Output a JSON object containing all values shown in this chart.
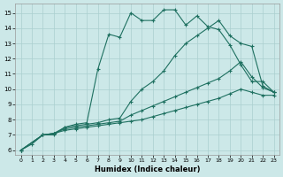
{
  "xlabel": "Humidex (Indice chaleur)",
  "bg_color": "#cce8e8",
  "grid_color": "#aacfcf",
  "line_color": "#1e7060",
  "xlim": [
    -0.5,
    23.5
  ],
  "ylim": [
    5.7,
    15.6
  ],
  "yticks": [
    6,
    7,
    8,
    9,
    10,
    11,
    12,
    13,
    14,
    15
  ],
  "xticks": [
    0,
    1,
    2,
    3,
    4,
    5,
    6,
    7,
    8,
    9,
    10,
    11,
    12,
    13,
    14,
    15,
    16,
    17,
    18,
    19,
    20,
    21,
    22,
    23
  ],
  "lines": [
    {
      "x": [
        0,
        1,
        2,
        3,
        4,
        5,
        6,
        7,
        8,
        9,
        10,
        11,
        12,
        13,
        14,
        15,
        16,
        17,
        18,
        19,
        20,
        21,
        22,
        23
      ],
      "y": [
        6,
        6.4,
        7.0,
        7.0,
        7.5,
        7.7,
        7.8,
        11.3,
        13.6,
        13.4,
        15.0,
        14.5,
        14.5,
        15.2,
        15.2,
        14.2,
        14.8,
        14.1,
        13.9,
        12.9,
        11.6,
        10.5,
        10.5,
        9.8
      ],
      "marker": "+"
    },
    {
      "x": [
        0,
        2,
        3,
        4,
        5,
        6,
        7,
        8,
        9,
        10,
        11,
        12,
        13,
        14,
        15,
        16,
        17,
        18,
        19,
        20,
        21,
        22,
        23
      ],
      "y": [
        6.0,
        7.0,
        7.1,
        7.5,
        7.6,
        7.7,
        7.8,
        8.0,
        8.1,
        9.2,
        10.0,
        10.5,
        11.2,
        12.2,
        13.0,
        13.5,
        14.0,
        14.5,
        13.5,
        13.0,
        12.8,
        10.2,
        9.8
      ],
      "marker": "+"
    },
    {
      "x": [
        0,
        2,
        3,
        4,
        5,
        6,
        7,
        8,
        9,
        10,
        11,
        12,
        13,
        14,
        15,
        16,
        17,
        18,
        19,
        20,
        21,
        22,
        23
      ],
      "y": [
        6.0,
        7.0,
        7.1,
        7.4,
        7.5,
        7.6,
        7.7,
        7.8,
        7.9,
        8.3,
        8.6,
        8.9,
        9.2,
        9.5,
        9.8,
        10.1,
        10.4,
        10.7,
        11.2,
        11.8,
        10.8,
        10.1,
        9.8
      ],
      "marker": "+"
    },
    {
      "x": [
        0,
        2,
        3,
        4,
        5,
        6,
        7,
        8,
        9,
        10,
        11,
        12,
        13,
        14,
        15,
        16,
        17,
        18,
        19,
        20,
        21,
        22,
        23
      ],
      "y": [
        6.0,
        7.0,
        7.1,
        7.3,
        7.4,
        7.5,
        7.6,
        7.7,
        7.8,
        7.9,
        8.0,
        8.2,
        8.4,
        8.6,
        8.8,
        9.0,
        9.2,
        9.4,
        9.7,
        10.0,
        9.8,
        9.6,
        9.6
      ],
      "marker": "+"
    }
  ]
}
